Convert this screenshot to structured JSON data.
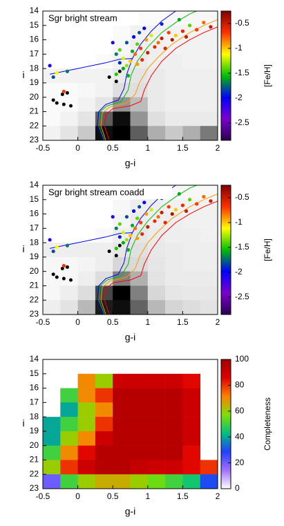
{
  "chart_data": [
    {
      "type": "scatter",
      "title": "Sgr bright stream",
      "xlabel": "g-i",
      "ylabel": "i",
      "xlim": [
        -0.5,
        2
      ],
      "ylim": [
        23,
        14
      ],
      "xticks": [
        -0.5,
        0,
        0.5,
        1,
        1.5,
        2
      ],
      "yticks": [
        14,
        15,
        16,
        17,
        18,
        19,
        20,
        21,
        22,
        23
      ],
      "density": {
        "xbins": [
          -0.5,
          -0.25,
          0,
          0.25,
          0.5,
          0.75,
          1,
          1.25,
          1.5,
          1.75,
          2
        ],
        "ybins": [
          14,
          15,
          16,
          17,
          18,
          19,
          20,
          21,
          22,
          23
        ],
        "colormap": [
          "#ffffff",
          "#000000"
        ],
        "values": [
          [
            0,
            0,
            0,
            0,
            0,
            0.02,
            0.02,
            0.03,
            0.03,
            0.03
          ],
          [
            0,
            0,
            0,
            0,
            0.02,
            0.05,
            0.05,
            0.05,
            0.05,
            0.05
          ],
          [
            0,
            0,
            0,
            0,
            0.03,
            0.06,
            0.06,
            0.05,
            0.05,
            0.05
          ],
          [
            0,
            0,
            0,
            0.02,
            0.05,
            0.08,
            0.06,
            0.06,
            0.05,
            0.05
          ],
          [
            0.05,
            0.05,
            0.05,
            0.05,
            0.08,
            0.1,
            0.08,
            0.06,
            0.06,
            0.06
          ],
          [
            0.02,
            0.02,
            0.03,
            0.05,
            0.12,
            0.12,
            0.08,
            0.06,
            0.06,
            0.06
          ],
          [
            0.02,
            0.02,
            0.05,
            0.1,
            0.4,
            0.25,
            0.08,
            0.06,
            0.06,
            0.06
          ],
          [
            0.02,
            0.05,
            0.1,
            0.6,
            0.9,
            0.4,
            0.12,
            0.08,
            0.08,
            0.08
          ],
          [
            0.05,
            0.1,
            0.2,
            0.9,
            0.95,
            0.6,
            0.3,
            0.2,
            0.3,
            0.5
          ]
        ]
      },
      "lines": [
        {
          "color": "#ff0000",
          "x": [
            0.45,
            0.38,
            0.4,
            0.5,
            0.75,
            0.9,
            0.95,
            1.05,
            1.2,
            1.4,
            1.6,
            1.8,
            2.0
          ],
          "y": [
            23,
            22,
            21.2,
            20.8,
            20.6,
            20.3,
            19.5,
            18.5,
            17.5,
            16.6,
            16.0,
            15.5,
            15.1
          ]
        },
        {
          "color": "#ff9900",
          "x": [
            0.4,
            0.33,
            0.35,
            0.45,
            0.7,
            0.82,
            0.88,
            1.0,
            1.15,
            1.35,
            1.6,
            1.8,
            2.0
          ],
          "y": [
            23,
            22,
            21.1,
            20.7,
            20.4,
            19.8,
            19.0,
            18.0,
            17.2,
            16.3,
            15.5,
            15.0,
            14.6
          ]
        },
        {
          "color": "#00bb00",
          "x": [
            0.38,
            0.3,
            0.32,
            0.42,
            0.62,
            0.72,
            0.76,
            0.85,
            1.0,
            1.2,
            1.4,
            1.6,
            1.7
          ],
          "y": [
            23,
            22,
            21.0,
            20.6,
            20.3,
            19.5,
            18.5,
            17.5,
            16.5,
            15.5,
            14.8,
            14.2,
            14
          ]
        },
        {
          "color": "#0000ff",
          "x": [
            0.36,
            0.28,
            0.3,
            0.4,
            0.58,
            0.66,
            0.7,
            0.78,
            0.9,
            1.05,
            1.2,
            1.4
          ],
          "y": [
            23,
            22,
            21.0,
            20.5,
            20.2,
            19.4,
            18.4,
            17.3,
            16.3,
            15.4,
            14.7,
            14.0
          ]
        },
        {
          "color": "#0000ff",
          "x": [
            -0.4,
            -0.2,
            0,
            0.2,
            0.4,
            0.6,
            0.78
          ],
          "y": [
            18.4,
            18.2,
            18.0,
            17.8,
            17.6,
            17.35,
            17.3
          ]
        }
      ],
      "points": {
        "x": [
          -0.4,
          -0.35,
          -0.3,
          -0.15,
          -0.2,
          0.55,
          0.6,
          0.6,
          0.65,
          0.65,
          0.7,
          0.7,
          0.72,
          0.75,
          0.78,
          0.8,
          0.82,
          0.85,
          0.85,
          0.88,
          0.9,
          0.92,
          0.95,
          0.98,
          1.0,
          1.05,
          1.1,
          1.15,
          1.2,
          1.25,
          1.3,
          1.35,
          1.4,
          1.5,
          1.55,
          1.6,
          1.7,
          1.8,
          1.9,
          1.45,
          1.2,
          0.5,
          0.55
        ],
        "y": [
          17.8,
          18.6,
          18.3,
          18.2,
          19.6,
          17.0,
          16.7,
          17.6,
          17.3,
          18.0,
          16.2,
          17.8,
          18.5,
          17.5,
          16.8,
          15.8,
          17.0,
          16.3,
          17.7,
          15.5,
          16.6,
          17.4,
          15.2,
          16.0,
          16.9,
          15.7,
          16.5,
          16.2,
          15.9,
          16.6,
          15.5,
          16.0,
          15.7,
          15.4,
          15.8,
          15.0,
          15.3,
          14.8,
          15.1,
          14.6,
          14.9,
          16.2,
          18.4
        ],
        "c": [
          -2.1,
          -1.8,
          -1.1,
          -1.7,
          -0.7,
          -1.7,
          -1.4,
          -1.9,
          -1.2,
          -1.6,
          -1.8,
          -1.3,
          -1.6,
          -1.0,
          -1.6,
          -2.0,
          -0.8,
          -1.4,
          -0.9,
          -1.8,
          -0.7,
          -0.6,
          -2.0,
          -0.9,
          -0.5,
          -1.2,
          -0.6,
          -0.8,
          -0.5,
          -0.6,
          -0.7,
          -0.4,
          -1.0,
          -0.6,
          -0.5,
          -1.4,
          -0.7,
          -0.8,
          -0.5,
          -1.6,
          -1.9,
          -2.1,
          -1.5
        ]
      },
      "black_points": {
        "color": "#000000",
        "x": [
          0.45,
          0.55,
          0.6,
          -0.35,
          -0.3,
          -0.22,
          -0.15,
          -0.2,
          -0.1
        ],
        "y": [
          18.6,
          18.9,
          18.2,
          20.2,
          20.4,
          19.8,
          19.7,
          20.5,
          20.6
        ]
      },
      "colorbar": {
        "label": "[Fe/H]",
        "lim": [
          -2.85,
          -0.25
        ],
        "ticks": [
          -2.5,
          -2,
          -1.5,
          -1,
          -0.5
        ],
        "colormap": [
          "#2a0050",
          "#7a00d0",
          "#0000ff",
          "#00c000",
          "#ffff00",
          "#ff3000",
          "#800000"
        ]
      }
    },
    {
      "type": "scatter",
      "title": "Sgr bright stream coadd",
      "xlabel": "g-i",
      "ylabel": "i",
      "xlim": [
        -0.5,
        2
      ],
      "ylim": [
        23,
        14
      ],
      "xticks": [
        -0.5,
        0,
        0.5,
        1,
        1.5,
        2
      ],
      "yticks": [
        14,
        15,
        16,
        17,
        18,
        19,
        20,
        21,
        22,
        23
      ],
      "density": {
        "xbins": [
          -0.5,
          -0.25,
          0,
          0.25,
          0.5,
          0.75,
          1,
          1.25,
          1.5,
          1.75,
          2
        ],
        "ybins": [
          14,
          15,
          16,
          17,
          18,
          19,
          20,
          21,
          22,
          23
        ],
        "colormap": [
          "#ffffff",
          "#000000"
        ],
        "values": [
          [
            0,
            0,
            0,
            0,
            0,
            0.03,
            0.03,
            0.03,
            0.03,
            0.03
          ],
          [
            0,
            0,
            0,
            0,
            0.03,
            0.06,
            0.06,
            0.05,
            0.05,
            0.05
          ],
          [
            0,
            0,
            0,
            0,
            0.04,
            0.07,
            0.06,
            0.06,
            0.05,
            0.05
          ],
          [
            0,
            0,
            0,
            0.02,
            0.06,
            0.09,
            0.07,
            0.06,
            0.06,
            0.05
          ],
          [
            0.06,
            0.06,
            0.06,
            0.06,
            0.09,
            0.11,
            0.08,
            0.07,
            0.06,
            0.06
          ],
          [
            0.03,
            0.03,
            0.04,
            0.06,
            0.14,
            0.13,
            0.09,
            0.07,
            0.06,
            0.06
          ],
          [
            0.03,
            0.03,
            0.06,
            0.12,
            0.45,
            0.28,
            0.1,
            0.07,
            0.07,
            0.07
          ],
          [
            0.03,
            0.06,
            0.12,
            0.65,
            0.9,
            0.45,
            0.14,
            0.09,
            0.08,
            0.08
          ],
          [
            0.06,
            0.1,
            0.25,
            0.8,
            0.85,
            0.55,
            0.25,
            0.15,
            0.12,
            0.1
          ]
        ]
      },
      "lines": [
        {
          "color": "#ff0000",
          "x": [
            0.45,
            0.38,
            0.4,
            0.5,
            0.75,
            0.9,
            0.95,
            1.05,
            1.2,
            1.4,
            1.6,
            1.8,
            2.0
          ],
          "y": [
            23,
            22,
            21.2,
            20.8,
            20.6,
            20.3,
            19.5,
            18.5,
            17.5,
            16.6,
            16.0,
            15.5,
            15.1
          ]
        },
        {
          "color": "#ff9900",
          "x": [
            0.4,
            0.33,
            0.35,
            0.45,
            0.7,
            0.82,
            0.88,
            1.0,
            1.15,
            1.35,
            1.6,
            1.8,
            2.0
          ],
          "y": [
            23,
            22,
            21.1,
            20.7,
            20.4,
            19.8,
            19.0,
            18.0,
            17.2,
            16.3,
            15.5,
            15.0,
            14.6
          ]
        },
        {
          "color": "#00bb00",
          "x": [
            0.38,
            0.3,
            0.32,
            0.42,
            0.62,
            0.72,
            0.76,
            0.85,
            1.0,
            1.2,
            1.4,
            1.6,
            1.7
          ],
          "y": [
            23,
            22,
            21.0,
            20.6,
            20.3,
            19.5,
            18.5,
            17.5,
            16.5,
            15.5,
            14.8,
            14.2,
            14
          ]
        },
        {
          "color": "#0000ff",
          "x": [
            0.36,
            0.28,
            0.3,
            0.4,
            0.58,
            0.66,
            0.7,
            0.78,
            0.9,
            1.05,
            1.2,
            1.4
          ],
          "y": [
            23,
            22,
            21.0,
            20.5,
            20.2,
            19.4,
            18.4,
            17.3,
            16.3,
            15.4,
            14.7,
            14.0
          ]
        },
        {
          "color": "#0000ff",
          "x": [
            -0.4,
            -0.2,
            0,
            0.2,
            0.4,
            0.6,
            0.78
          ],
          "y": [
            18.4,
            18.2,
            18.0,
            17.8,
            17.6,
            17.35,
            17.3
          ]
        }
      ],
      "points": {
        "x": [
          -0.4,
          -0.35,
          -0.3,
          -0.15,
          -0.2,
          0.55,
          0.6,
          0.6,
          0.65,
          0.65,
          0.7,
          0.7,
          0.72,
          0.75,
          0.78,
          0.8,
          0.82,
          0.85,
          0.85,
          0.88,
          0.9,
          0.92,
          0.95,
          0.98,
          1.0,
          1.05,
          1.1,
          1.15,
          1.2,
          1.25,
          1.3,
          1.35,
          1.4,
          1.5,
          1.55,
          1.6,
          1.7,
          1.8,
          1.9,
          1.45,
          1.2,
          0.5,
          0.55
        ],
        "y": [
          17.8,
          18.6,
          18.3,
          18.2,
          19.6,
          17.0,
          16.7,
          17.6,
          17.3,
          18.0,
          16.2,
          17.8,
          18.5,
          17.5,
          16.8,
          15.8,
          17.0,
          16.3,
          17.7,
          15.5,
          16.6,
          17.4,
          15.2,
          16.0,
          16.9,
          15.7,
          16.5,
          16.2,
          15.9,
          16.6,
          15.5,
          16.0,
          15.7,
          15.4,
          15.8,
          15.0,
          15.3,
          14.8,
          15.1,
          14.6,
          14.9,
          16.2,
          18.4
        ],
        "c": [
          -2.1,
          -1.8,
          -1.1,
          -1.7,
          -0.7,
          -1.7,
          -1.4,
          -1.9,
          -1.2,
          -1.6,
          -1.8,
          -1.3,
          -1.6,
          -1.0,
          -1.6,
          -2.0,
          -0.8,
          -1.4,
          -0.9,
          -1.8,
          -0.7,
          -0.6,
          -2.0,
          -0.9,
          -0.5,
          -1.2,
          -0.6,
          -0.8,
          -0.5,
          -0.6,
          -0.7,
          -0.4,
          -1.0,
          -0.6,
          -0.5,
          -1.4,
          -0.7,
          -0.8,
          -0.5,
          -1.6,
          -1.9,
          -2.1,
          -1.5
        ]
      },
      "black_points": {
        "color": "#000000",
        "x": [
          0.45,
          0.55,
          0.6,
          -0.35,
          -0.3,
          -0.22,
          -0.15,
          -0.2,
          -0.1
        ],
        "y": [
          18.6,
          18.9,
          18.2,
          20.2,
          20.4,
          19.8,
          19.7,
          20.5,
          20.6
        ]
      },
      "colorbar": {
        "label": "[Fe/H]",
        "lim": [
          -2.85,
          -0.25
        ],
        "ticks": [
          -2.5,
          -2,
          -1.5,
          -1,
          -0.5
        ],
        "colormap": [
          "#2a0050",
          "#7a00d0",
          "#0000ff",
          "#00c000",
          "#ffff00",
          "#ff3000",
          "#800000"
        ]
      }
    },
    {
      "type": "heatmap",
      "xlabel": "g-i",
      "ylabel": "i",
      "xlim": [
        -0.5,
        2
      ],
      "ylim": [
        23,
        14
      ],
      "xticks": [
        -0.5,
        0,
        0.5,
        1,
        1.5,
        2
      ],
      "yticks": [
        14,
        15,
        16,
        17,
        18,
        19,
        20,
        21,
        22,
        23
      ],
      "density": {
        "xbins": [
          -0.5,
          -0.25,
          0,
          0.25,
          0.5,
          0.75,
          1,
          1.25,
          1.5,
          1.75,
          2
        ],
        "ybins": [
          14,
          15,
          16,
          17,
          18,
          19,
          20,
          21,
          22,
          23
        ],
        "values": [
          [
            null,
            null,
            null,
            null,
            null,
            null,
            null,
            null,
            null,
            null
          ],
          [
            null,
            null,
            70,
            60,
            90,
            90,
            90,
            90,
            85,
            null
          ],
          [
            null,
            50,
            70,
            80,
            95,
            95,
            95,
            95,
            90,
            null
          ],
          [
            null,
            40,
            60,
            70,
            95,
            95,
            95,
            95,
            90,
            null
          ],
          [
            40,
            50,
            60,
            80,
            95,
            95,
            95,
            95,
            90,
            null
          ],
          [
            40,
            60,
            70,
            90,
            95,
            95,
            95,
            95,
            90,
            null
          ],
          [
            50,
            70,
            85,
            95,
            95,
            95,
            95,
            95,
            85,
            null
          ],
          [
            60,
            80,
            90,
            95,
            95,
            92,
            90,
            90,
            85,
            80
          ],
          [
            20,
            50,
            60,
            65,
            65,
            60,
            55,
            50,
            45,
            30
          ]
        ]
      },
      "colorbar": {
        "label": "Completeness",
        "lim": [
          0,
          100
        ],
        "ticks": [
          0,
          20,
          40,
          60,
          80,
          100
        ],
        "colormap": [
          "#ffffff",
          "#a070ff",
          "#2040ff",
          "#00c080",
          "#80e000",
          "#ff8000",
          "#e00000",
          "#a00000"
        ]
      }
    }
  ]
}
